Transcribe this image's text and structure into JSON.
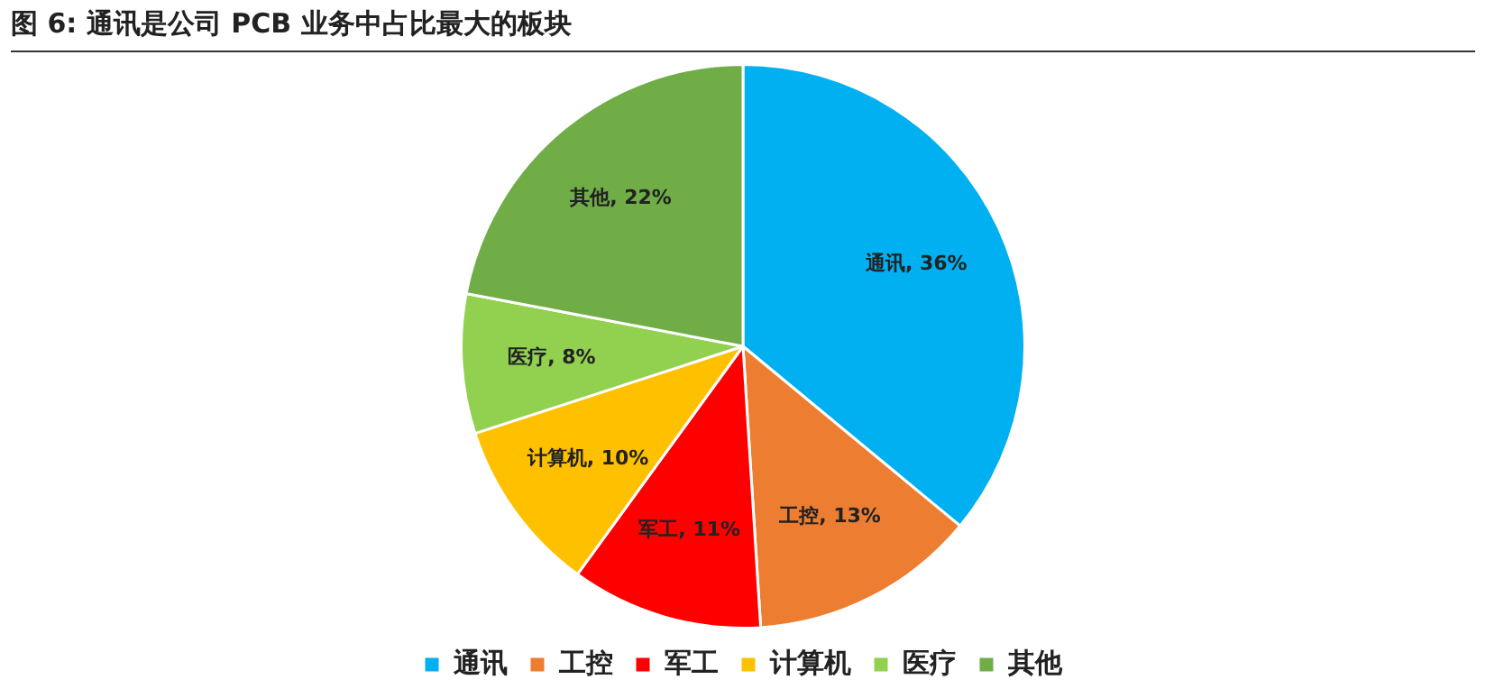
{
  "chart_data": {
    "type": "pie",
    "title": "图 6: 通讯是公司 PCB 业务中占比最大的板块",
    "categories": [
      "通讯",
      "工控",
      "军工",
      "计算机",
      "医疗",
      "其他"
    ],
    "values": [
      36,
      13,
      11,
      10,
      8,
      22
    ],
    "colors": [
      "#00b0f0",
      "#ed7d31",
      "#ff0000",
      "#ffc000",
      "#92d050",
      "#70ad47"
    ],
    "value_labels": [
      "通讯, 36%",
      "工控, 13%",
      "军工, 11%",
      "计算机, 10%",
      "医疗, 8%",
      "其他, 22%"
    ],
    "legend": "bottom"
  }
}
